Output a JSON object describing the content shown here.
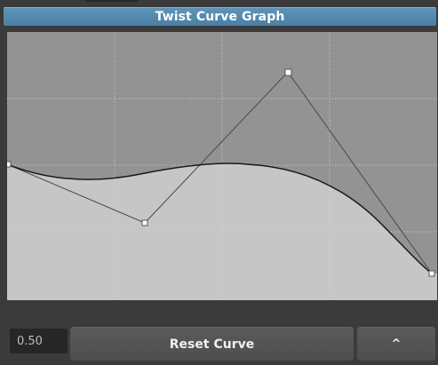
{
  "window": {
    "title": "Twist Curve Graph"
  },
  "graph": {
    "grid_visible": true,
    "grid_divisions": 4,
    "colors": {
      "background": "#8a8a8a",
      "filled_area": "#c6c6c6",
      "curve": "#1a1a1a",
      "control_polygon": "#4a4a4a",
      "grid": "#d8d8d8",
      "handle": "#ffffff"
    }
  },
  "controls": {
    "value": "0.50",
    "reset_label": "Reset Curve",
    "collapse_label": "^"
  }
}
